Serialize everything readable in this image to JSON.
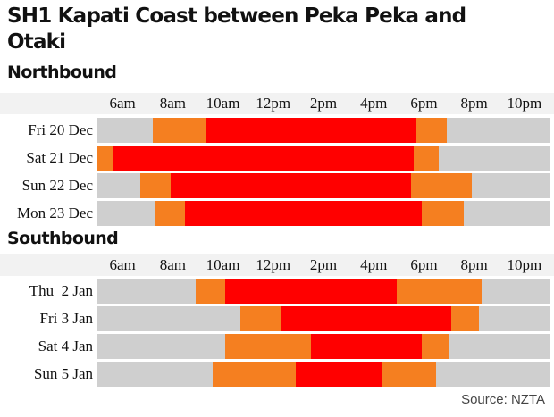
{
  "title": "SH1 Kapati Coast between Peka Peka and Otaki",
  "source": "Source: NZTA",
  "colors": {
    "gray": "#cfcfcf",
    "orange": "#f57f20",
    "red": "#ff0000",
    "axis_band": "#f2f2f2"
  },
  "chart_data": [
    {
      "type": "timeline",
      "title": "Northbound",
      "x_ticks": [
        "6am",
        "8am",
        "10am",
        "12pm",
        "2pm",
        "4pm",
        "6pm",
        "8pm",
        "10pm"
      ],
      "xlim_hours": [
        5,
        23
      ],
      "legend": "none",
      "rows": [
        {
          "label": "Fri 20 Dec",
          "segments": [
            {
              "start": 5.0,
              "end": 7.2,
              "level": "gray"
            },
            {
              "start": 7.2,
              "end": 9.3,
              "level": "orange"
            },
            {
              "start": 9.3,
              "end": 17.7,
              "level": "red"
            },
            {
              "start": 17.7,
              "end": 18.9,
              "level": "orange"
            },
            {
              "start": 18.9,
              "end": 23.0,
              "level": "gray"
            }
          ]
        },
        {
          "label": "Sat 21 Dec",
          "segments": [
            {
              "start": 5.0,
              "end": 5.6,
              "level": "orange"
            },
            {
              "start": 5.6,
              "end": 17.6,
              "level": "red"
            },
            {
              "start": 17.6,
              "end": 18.6,
              "level": "orange"
            },
            {
              "start": 18.6,
              "end": 23.0,
              "level": "gray"
            }
          ]
        },
        {
          "label": "Sun 22 Dec",
          "segments": [
            {
              "start": 5.0,
              "end": 6.7,
              "level": "gray"
            },
            {
              "start": 6.7,
              "end": 7.9,
              "level": "orange"
            },
            {
              "start": 7.9,
              "end": 17.5,
              "level": "red"
            },
            {
              "start": 17.5,
              "end": 19.9,
              "level": "orange"
            },
            {
              "start": 19.9,
              "end": 23.0,
              "level": "gray"
            }
          ]
        },
        {
          "label": "Mon 23 Dec",
          "segments": [
            {
              "start": 5.0,
              "end": 7.3,
              "level": "gray"
            },
            {
              "start": 7.3,
              "end": 8.5,
              "level": "orange"
            },
            {
              "start": 8.5,
              "end": 17.9,
              "level": "red"
            },
            {
              "start": 17.9,
              "end": 19.6,
              "level": "orange"
            },
            {
              "start": 19.6,
              "end": 23.0,
              "level": "gray"
            }
          ]
        }
      ]
    },
    {
      "type": "timeline",
      "title": "Southbound",
      "x_ticks": [
        "6am",
        "8am",
        "10am",
        "12pm",
        "2pm",
        "4pm",
        "6pm",
        "8pm",
        "10pm"
      ],
      "xlim_hours": [
        5,
        23
      ],
      "legend": "none",
      "rows": [
        {
          "label": "Thu  2 Jan",
          "segments": [
            {
              "start": 5.0,
              "end": 8.9,
              "level": "gray"
            },
            {
              "start": 8.9,
              "end": 10.1,
              "level": "orange"
            },
            {
              "start": 10.1,
              "end": 16.9,
              "level": "red"
            },
            {
              "start": 16.9,
              "end": 20.3,
              "level": "orange"
            },
            {
              "start": 20.3,
              "end": 23.0,
              "level": "gray"
            }
          ]
        },
        {
          "label": "Fri 3 Jan",
          "segments": [
            {
              "start": 5.0,
              "end": 10.7,
              "level": "gray"
            },
            {
              "start": 10.7,
              "end": 12.3,
              "level": "orange"
            },
            {
              "start": 12.3,
              "end": 19.1,
              "level": "red"
            },
            {
              "start": 19.1,
              "end": 20.2,
              "level": "orange"
            },
            {
              "start": 20.2,
              "end": 23.0,
              "level": "gray"
            }
          ]
        },
        {
          "label": "Sat 4 Jan",
          "segments": [
            {
              "start": 5.0,
              "end": 10.1,
              "level": "gray"
            },
            {
              "start": 10.1,
              "end": 13.5,
              "level": "orange"
            },
            {
              "start": 13.5,
              "end": 17.9,
              "level": "red"
            },
            {
              "start": 17.9,
              "end": 19.0,
              "level": "orange"
            },
            {
              "start": 19.0,
              "end": 23.0,
              "level": "gray"
            }
          ]
        },
        {
          "label": "Sun 5 Jan",
          "segments": [
            {
              "start": 5.0,
              "end": 9.6,
              "level": "gray"
            },
            {
              "start": 9.6,
              "end": 12.9,
              "level": "orange"
            },
            {
              "start": 12.9,
              "end": 16.3,
              "level": "red"
            },
            {
              "start": 16.3,
              "end": 18.5,
              "level": "orange"
            },
            {
              "start": 18.5,
              "end": 23.0,
              "level": "gray"
            }
          ]
        }
      ]
    }
  ]
}
